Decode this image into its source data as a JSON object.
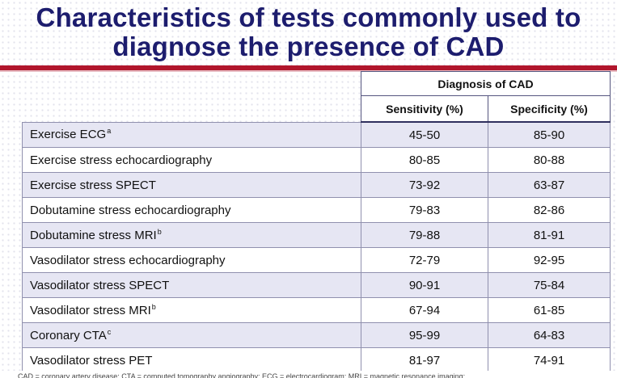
{
  "title": {
    "line1": "Characteristics of tests commonly used to",
    "line2": "diagnose the presence of CAD"
  },
  "table": {
    "group_header": "Diagnosis of CAD",
    "col_sensitivity": "Sensitivity (%)",
    "col_specificity": "Specificity (%)",
    "rows": [
      {
        "test": "Exercise ECG",
        "sup": "a",
        "sensitivity": "45-50",
        "specificity": "85-90"
      },
      {
        "test": "Exercise stress echocardiography",
        "sup": "",
        "sensitivity": "80-85",
        "specificity": "80-88"
      },
      {
        "test": "Exercise stress SPECT",
        "sup": "",
        "sensitivity": "73-92",
        "specificity": "63-87"
      },
      {
        "test": "Dobutamine stress echocardiography",
        "sup": "",
        "sensitivity": "79-83",
        "specificity": "82-86"
      },
      {
        "test": "Dobutamine stress MRI",
        "sup": "b",
        "sensitivity": "79-88",
        "specificity": "81-91"
      },
      {
        "test": "Vasodilator stress echocardiography",
        "sup": "",
        "sensitivity": "72-79",
        "specificity": "92-95"
      },
      {
        "test": "Vasodilator stress SPECT",
        "sup": "",
        "sensitivity": "90-91",
        "specificity": "75-84"
      },
      {
        "test": "Vasodilator stress MRI",
        "sup": "b",
        "sensitivity": "67-94",
        "specificity": "61-85"
      },
      {
        "test": "Coronary CTA",
        "sup": "c",
        "sensitivity": "95-99",
        "specificity": "64-83"
      },
      {
        "test": "Vasodilator stress PET",
        "sup": "",
        "sensitivity": "81-97",
        "specificity": "74-91"
      }
    ]
  },
  "footnote": "CAD = coronary artery disease; CTA = computed tomography angiography; ECG = electrocardiogram; MRI = magnetic resonance imaging;",
  "colors": {
    "title": "#1d1d6e",
    "accent_line": "#b1162c",
    "row_shade": "#e6e6f3"
  }
}
